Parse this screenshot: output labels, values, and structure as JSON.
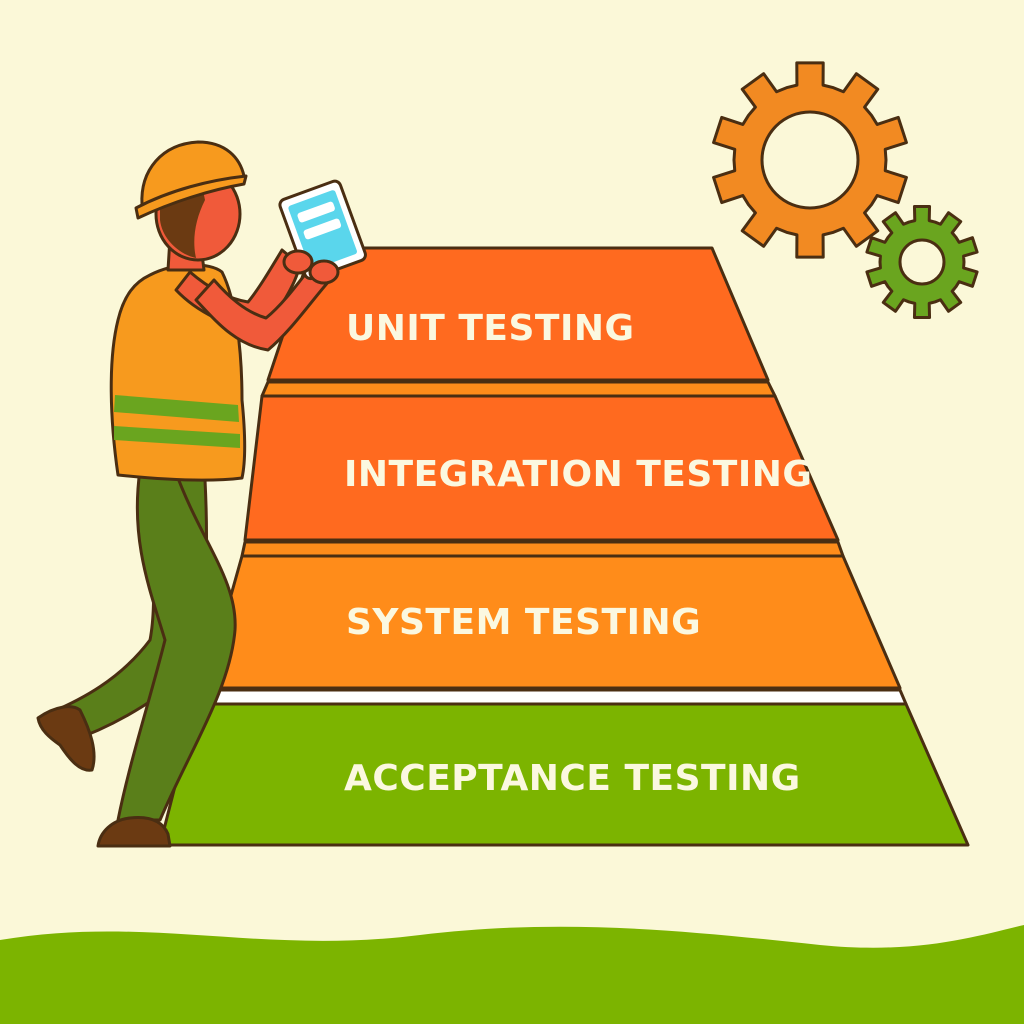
{
  "pyramid": {
    "tiers": [
      {
        "label": "UNIT TESTING",
        "color": "#ff6a1f"
      },
      {
        "label": "INTEGRATION TESTING",
        "color": "#ff6a1f"
      },
      {
        "label": "SYSTEM TESTING",
        "color": "#ff8c1a"
      },
      {
        "label": "ACCEPTANCE TESTING",
        "color": "#7cb400"
      }
    ]
  },
  "palette": {
    "background": "#fbf8d8",
    "ground": "#7cb400",
    "gear_large": "#f28a22",
    "gear_small": "#6aa51f",
    "vest": "#f79a1e",
    "skin": "#f05a3a",
    "pants": "#5a7f1a",
    "hair": "#6b3a12",
    "tablet_screen": "#5ad6ec"
  },
  "icons": [
    "gear-icon",
    "gear-icon",
    "tablet-icon",
    "hard-hat-icon"
  ]
}
